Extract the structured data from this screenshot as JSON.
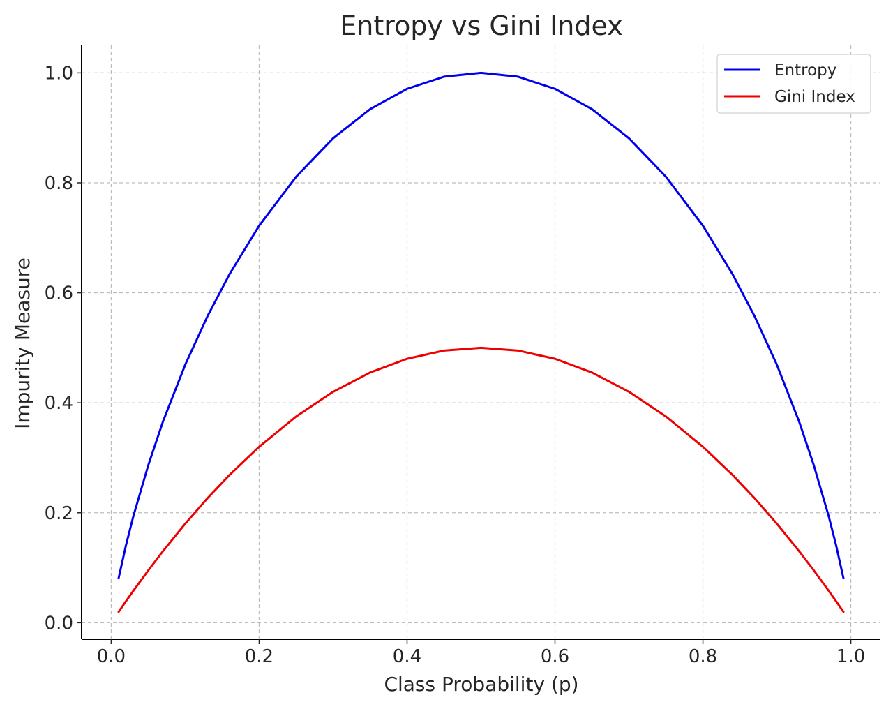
{
  "chart_data": {
    "type": "line",
    "title": "Entropy vs Gini Index",
    "xlabel": "Class Probability (p)",
    "ylabel": "Impurity Measure",
    "xlim": [
      -0.04,
      1.04
    ],
    "ylim": [
      -0.03,
      1.05
    ],
    "xticks": [
      0.0,
      0.2,
      0.4,
      0.6,
      0.8,
      1.0
    ],
    "xtick_labels": [
      "0.0",
      "0.2",
      "0.4",
      "0.6",
      "0.8",
      "1.0"
    ],
    "yticks": [
      0.0,
      0.2,
      0.4,
      0.6,
      0.8,
      1.0
    ],
    "ytick_labels": [
      "0.0",
      "0.2",
      "0.4",
      "0.6",
      "0.8",
      "1.0"
    ],
    "grid": true,
    "legend_position": "top-right",
    "x": [
      0.01,
      0.02,
      0.03,
      0.05,
      0.07,
      0.1,
      0.13,
      0.16,
      0.2,
      0.25,
      0.3,
      0.35,
      0.4,
      0.45,
      0.5,
      0.55,
      0.6,
      0.65,
      0.7,
      0.75,
      0.8,
      0.84,
      0.87,
      0.9,
      0.93,
      0.95,
      0.97,
      0.98,
      0.99
    ],
    "series": [
      {
        "name": "Entropy",
        "color": "#0000ee",
        "values": [
          0.081,
          0.141,
          0.194,
          0.286,
          0.366,
          0.469,
          0.557,
          0.634,
          0.722,
          0.811,
          0.881,
          0.934,
          0.971,
          0.993,
          1.0,
          0.993,
          0.971,
          0.934,
          0.881,
          0.811,
          0.722,
          0.634,
          0.557,
          0.469,
          0.366,
          0.286,
          0.194,
          0.141,
          0.081
        ]
      },
      {
        "name": "Gini Index",
        "color": "#ee0000",
        "values": [
          0.0198,
          0.0392,
          0.0582,
          0.095,
          0.1302,
          0.18,
          0.2262,
          0.2688,
          0.32,
          0.375,
          0.42,
          0.455,
          0.48,
          0.495,
          0.5,
          0.495,
          0.48,
          0.455,
          0.42,
          0.375,
          0.32,
          0.2688,
          0.2262,
          0.18,
          0.1302,
          0.095,
          0.0582,
          0.0392,
          0.0198
        ]
      }
    ]
  }
}
